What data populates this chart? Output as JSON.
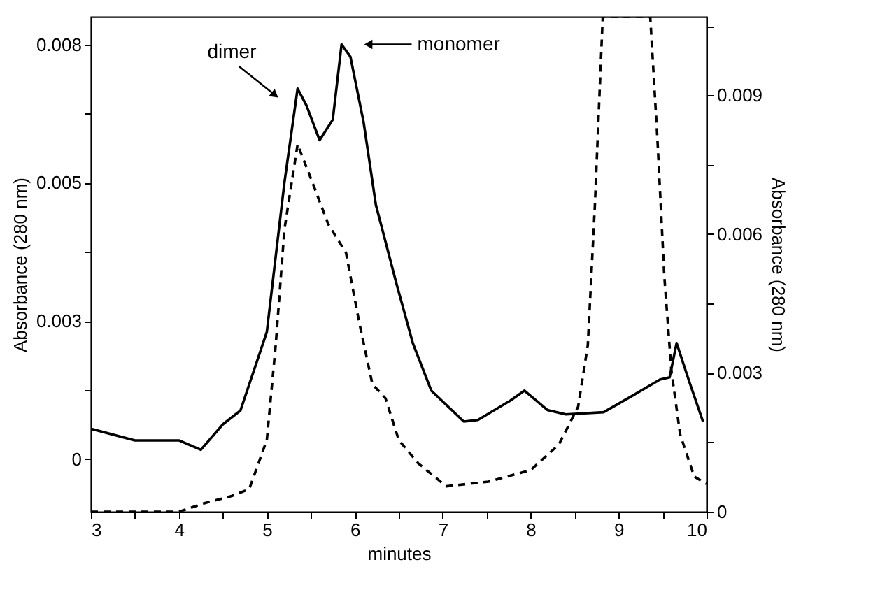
{
  "chart_data": {
    "type": "line",
    "xlabel": "minutes",
    "ylabel": "Absorbance (280 nm)",
    "y2label": "Absorbance (280 nm)",
    "xlim": [
      3,
      10
    ],
    "xticks": [
      3,
      {
        "value": 3.5,
        "label": null
      },
      4,
      {
        "value": 4.5,
        "label": null
      },
      5,
      {
        "value": 5.5,
        "label": null
      },
      6,
      {
        "value": 6.5,
        "label": null
      },
      7,
      {
        "value": 7.5,
        "label": null
      },
      8,
      {
        "value": 8.5,
        "label": null
      },
      9,
      {
        "value": 9.5,
        "label": null
      },
      10
    ],
    "ylim": [
      -0.00095,
      0.008
    ],
    "yticks": [
      0,
      {
        "value": 0.00125,
        "label": null
      },
      {
        "value": 0.0025,
        "label": "0.003"
      },
      {
        "value": 0.00375,
        "label": null
      },
      0.005,
      {
        "value": 0.00625,
        "label": null
      },
      {
        "value": 0.0075,
        "label": "0.008"
      }
    ],
    "y2lim": [
      0,
      0.0107
    ],
    "y2ticks": [
      0,
      {
        "value": 0.0015,
        "label": null
      },
      0.003,
      {
        "value": 0.0045,
        "label": null
      },
      0.006,
      {
        "value": 0.0075,
        "label": null
      },
      0.009,
      {
        "value": 0.0105,
        "label": null
      }
    ],
    "grid": false,
    "marker": "none",
    "series": [
      {
        "color": "#000000",
        "line_style": "solid",
        "x": [
          3.0,
          3.5,
          4.0,
          4.25,
          4.5,
          4.7,
          5.0,
          5.2,
          5.35,
          5.45,
          5.6,
          5.75,
          5.85,
          5.95,
          6.1,
          6.24,
          6.47,
          6.66,
          6.87,
          7.24,
          7.4,
          7.77,
          7.93,
          8.19,
          8.4,
          8.83,
          9.15,
          9.47,
          9.58,
          9.66,
          9.8,
          9.96
        ],
        "values": [
          0.00055,
          0.00034,
          0.00034,
          0.00017,
          0.00063,
          0.00088,
          0.0023,
          0.005,
          0.0067,
          0.0064,
          0.00577,
          0.00614,
          0.0075,
          0.00728,
          0.0061,
          0.0046,
          0.0032,
          0.0021,
          0.00124,
          0.00068,
          0.00071,
          0.00106,
          0.00124,
          0.00089,
          0.00081,
          0.00085,
          0.00114,
          0.00144,
          0.00148,
          0.0021,
          0.00142,
          0.00068
        ]
      },
      {
        "color": "#000000",
        "line_style": "dashed",
        "axis": "y2",
        "x": [
          3.0,
          3.5,
          4.0,
          4.3,
          4.6,
          4.8,
          5.0,
          5.1,
          5.2,
          5.35,
          5.5,
          5.7,
          5.9,
          6.05,
          6.2,
          6.35,
          6.5,
          6.72,
          7.04,
          7.52,
          8.0,
          8.32,
          8.54,
          8.65,
          8.73,
          8.82,
          9.36,
          9.44,
          9.52,
          9.6,
          9.7,
          9.86,
          10.0
        ],
        "values": [
          0,
          0,
          0,
          0.00019,
          0.00034,
          0.00049,
          0.00155,
          0.00358,
          0.0061,
          0.00794,
          0.00721,
          0.00621,
          0.0056,
          0.0041,
          0.00276,
          0.00245,
          0.00155,
          0.00105,
          0.00055,
          0.00065,
          0.0009,
          0.00145,
          0.00227,
          0.0036,
          0.0066,
          0.0107,
          0.0107,
          0.00812,
          0.00509,
          0.00306,
          0.00167,
          0.00076,
          0.0006
        ]
      }
    ],
    "annotations": [
      {
        "text": "dimer",
        "x": 5.08,
        "y": 0.0066
      },
      {
        "text": "monomer",
        "x": 6.17,
        "y": 0.0075
      }
    ]
  }
}
